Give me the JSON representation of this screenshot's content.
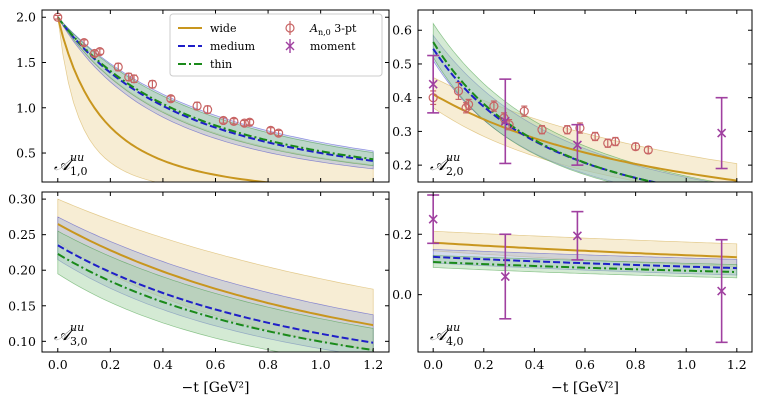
{
  "chart_data": [
    {
      "type": "line",
      "id": "A10",
      "panel_label": {
        "main": "𝒜",
        "sup": "uu",
        "sub": "1,0"
      },
      "xlim": [
        -0.06,
        1.26
      ],
      "ylim": [
        0.18,
        2.08
      ],
      "xticks": [
        0.0,
        0.2,
        0.4,
        0.6,
        0.8,
        1.0,
        1.2
      ],
      "xtick_labels": [
        "0.0",
        "0.2",
        "0.4",
        "0.6",
        "0.8",
        "1.0",
        "1.2"
      ],
      "yticks": [
        0.5,
        1.0,
        1.5,
        2.0
      ],
      "ytick_labels": [
        "0.5",
        "1.0",
        "1.5",
        "2.0"
      ],
      "show_xticklabels": false,
      "xlabel": "",
      "curves": {
        "wide": {
          "y0": 2.0,
          "Lambda": 0.58,
          "band_lo_L": 0.4,
          "band_hi_L": 0.95
        },
        "medium": {
          "y0": 2.0,
          "Lambda": 1.0,
          "band_lo_L": 0.9,
          "band_hi_L": 1.12
        },
        "thin": {
          "y0": 2.0,
          "Lambda": 1.02,
          "band_lo_L": 0.94,
          "band_hi_L": 1.1
        }
      },
      "points_3pt": [
        {
          "x": 0.0,
          "y": 2.0,
          "err": 0.02
        },
        {
          "x": 0.1,
          "y": 1.72,
          "err": 0.03
        },
        {
          "x": 0.14,
          "y": 1.6,
          "err": 0.03
        },
        {
          "x": 0.16,
          "y": 1.62,
          "err": 0.03
        },
        {
          "x": 0.23,
          "y": 1.45,
          "err": 0.04
        },
        {
          "x": 0.27,
          "y": 1.34,
          "err": 0.04
        },
        {
          "x": 0.29,
          "y": 1.32,
          "err": 0.04
        },
        {
          "x": 0.36,
          "y": 1.26,
          "err": 0.04
        },
        {
          "x": 0.43,
          "y": 1.1,
          "err": 0.03
        },
        {
          "x": 0.53,
          "y": 1.02,
          "err": 0.04
        },
        {
          "x": 0.57,
          "y": 0.98,
          "err": 0.04
        },
        {
          "x": 0.63,
          "y": 0.86,
          "err": 0.03
        },
        {
          "x": 0.67,
          "y": 0.85,
          "err": 0.03
        },
        {
          "x": 0.71,
          "y": 0.83,
          "err": 0.03
        },
        {
          "x": 0.73,
          "y": 0.84,
          "err": 0.03
        },
        {
          "x": 0.81,
          "y": 0.75,
          "err": 0.03
        },
        {
          "x": 0.84,
          "y": 0.72,
          "err": 0.03
        }
      ],
      "points_moment": [],
      "legend": {
        "location": "top-center",
        "entries": [
          {
            "key": "wide",
            "label": "wide",
            "kind": "line"
          },
          {
            "key": "medium",
            "label": "medium",
            "kind": "line"
          },
          {
            "key": "thin",
            "label": "thin",
            "kind": "line"
          },
          {
            "key": "pt3",
            "label_main": "A",
            "label_sub": "n,0",
            "label_rest": " 3-pt",
            "kind": "circle"
          },
          {
            "key": "moment",
            "label": "moment",
            "kind": "cross"
          }
        ]
      }
    },
    {
      "type": "line",
      "id": "A20",
      "panel_label": {
        "main": "𝒜",
        "sup": "uu",
        "sub": "2,0"
      },
      "xlim": [
        -0.06,
        1.26
      ],
      "ylim": [
        0.15,
        0.66
      ],
      "xticks": [
        0.0,
        0.2,
        0.4,
        0.6,
        0.8,
        1.0,
        1.2
      ],
      "xtick_labels": [
        "0.0",
        "0.2",
        "0.4",
        "0.6",
        "0.8",
        "1.0",
        "1.2"
      ],
      "yticks": [
        0.2,
        0.3,
        0.4,
        0.5,
        0.6
      ],
      "ytick_labels": [
        "0.2",
        "0.3",
        "0.4",
        "0.5",
        "0.6"
      ],
      "show_xticklabels": false,
      "xlabel": "",
      "curves": {
        "wide": {
          "y0": 0.41,
          "Lambda": 1.38,
          "y0_lo": 0.37,
          "y0_hi": 0.46,
          "L_lo": 1.2,
          "L_hi": 1.55
        },
        "medium": {
          "y0": 0.545,
          "Lambda": 0.98,
          "y0_lo": 0.51,
          "y0_hi": 0.585,
          "L_lo": 0.92,
          "L_hi": 1.06
        },
        "thin": {
          "y0": 0.565,
          "Lambda": 0.96,
          "y0_lo": 0.52,
          "y0_hi": 0.62,
          "L_lo": 0.9,
          "L_hi": 1.04
        }
      },
      "points_3pt": [
        {
          "x": 0.0,
          "y": 0.4,
          "err": 0.02
        },
        {
          "x": 0.1,
          "y": 0.42,
          "err": 0.025
        },
        {
          "x": 0.13,
          "y": 0.37,
          "err": 0.015
        },
        {
          "x": 0.14,
          "y": 0.38,
          "err": 0.015
        },
        {
          "x": 0.24,
          "y": 0.375,
          "err": 0.015
        },
        {
          "x": 0.28,
          "y": 0.34,
          "err": 0.015
        },
        {
          "x": 0.3,
          "y": 0.32,
          "err": 0.015
        },
        {
          "x": 0.36,
          "y": 0.36,
          "err": 0.015
        },
        {
          "x": 0.43,
          "y": 0.305,
          "err": 0.012
        },
        {
          "x": 0.53,
          "y": 0.305,
          "err": 0.012
        },
        {
          "x": 0.58,
          "y": 0.31,
          "err": 0.015
        },
        {
          "x": 0.64,
          "y": 0.285,
          "err": 0.012
        },
        {
          "x": 0.69,
          "y": 0.265,
          "err": 0.012
        },
        {
          "x": 0.72,
          "y": 0.27,
          "err": 0.012
        },
        {
          "x": 0.8,
          "y": 0.255,
          "err": 0.01
        },
        {
          "x": 0.85,
          "y": 0.245,
          "err": 0.01
        }
      ],
      "points_moment": [
        {
          "x": 0.0,
          "y": 0.44,
          "err": 0.085
        },
        {
          "x": 0.285,
          "y": 0.33,
          "err": 0.125
        },
        {
          "x": 0.57,
          "y": 0.26,
          "err": 0.06
        },
        {
          "x": 1.14,
          "y": 0.295,
          "err": 0.105
        }
      ]
    },
    {
      "type": "line",
      "id": "A30",
      "panel_label": {
        "main": "𝒜",
        "sup": "uu",
        "sub": "3,0"
      },
      "xlim": [
        -0.06,
        1.26
      ],
      "ylim": [
        0.085,
        0.31
      ],
      "xticks": [
        0.0,
        0.2,
        0.4,
        0.6,
        0.8,
        1.0,
        1.2
      ],
      "xtick_labels": [
        "0.0",
        "0.2",
        "0.4",
        "0.6",
        "0.8",
        "1.0",
        "1.2"
      ],
      "yticks": [
        0.1,
        0.15,
        0.2,
        0.25,
        0.3
      ],
      "ytick_labels": [
        "0.10",
        "0.15",
        "0.20",
        "0.25",
        "0.30"
      ],
      "show_xticklabels": true,
      "xlabel": "−t [GeV²]",
      "curves": {
        "wide": {
          "y0": 0.265,
          "Lambda": 1.6,
          "y0_lo": 0.24,
          "y0_hi": 0.3,
          "L_lo": 1.35,
          "L_hi": 1.95
        },
        "medium": {
          "y0": 0.235,
          "Lambda": 1.48,
          "y0_lo": 0.215,
          "y0_hi": 0.275,
          "L_lo": 1.35,
          "L_hi": 1.7
        },
        "thin": {
          "y0": 0.223,
          "Lambda": 1.42,
          "y0_lo": 0.195,
          "y0_hi": 0.255,
          "L_lo": 1.28,
          "L_hi": 1.6
        }
      },
      "points_3pt": [],
      "points_moment": []
    },
    {
      "type": "line",
      "id": "A40",
      "panel_label": {
        "main": "𝒜",
        "sup": "uu",
        "sub": "4,0"
      },
      "xlim": [
        -0.06,
        1.26
      ],
      "ylim": [
        -0.19,
        0.34
      ],
      "xticks": [
        0.0,
        0.2,
        0.4,
        0.6,
        0.8,
        1.0,
        1.2
      ],
      "xtick_labels": [
        "0.0",
        "0.2",
        "0.4",
        "0.6",
        "0.8",
        "1.0",
        "1.2"
      ],
      "yticks": [
        0.0,
        0.2
      ],
      "ytick_labels": [
        "0.0",
        "0.2"
      ],
      "show_xticklabels": true,
      "xlabel": "−t [GeV²]",
      "curves": {
        "wide": {
          "y0": 0.172,
          "Lambda": 2.6,
          "y0_lo": 0.145,
          "y0_hi": 0.21,
          "L_lo": 2.2,
          "L_hi": 3.2
        },
        "medium": {
          "y0": 0.125,
          "Lambda": 2.5,
          "y0_lo": 0.105,
          "y0_hi": 0.15,
          "L_lo": 2.1,
          "L_hi": 3.0
        },
        "thin": {
          "y0": 0.108,
          "Lambda": 2.45,
          "y0_lo": 0.09,
          "y0_hi": 0.13,
          "L_lo": 2.1,
          "L_hi": 2.9
        }
      },
      "points_3pt": [],
      "points_moment": [
        {
          "x": 0.0,
          "y": 0.25,
          "err": 0.08
        },
        {
          "x": 0.285,
          "y": 0.06,
          "err": 0.14
        },
        {
          "x": 0.57,
          "y": 0.195,
          "err": 0.08
        },
        {
          "x": 1.14,
          "y": 0.012,
          "err": 0.17
        }
      ]
    }
  ],
  "style": {
    "wide_color": "#c8961e",
    "medium_color": "#1f1fc8",
    "thin_color": "#1a8a1a",
    "pt3_color": "#c86464",
    "moment_color": "#a040a0",
    "wide_band": "#f0deb0",
    "medium_band": "#9fb0d8",
    "thin_band": "#9fd09f"
  }
}
